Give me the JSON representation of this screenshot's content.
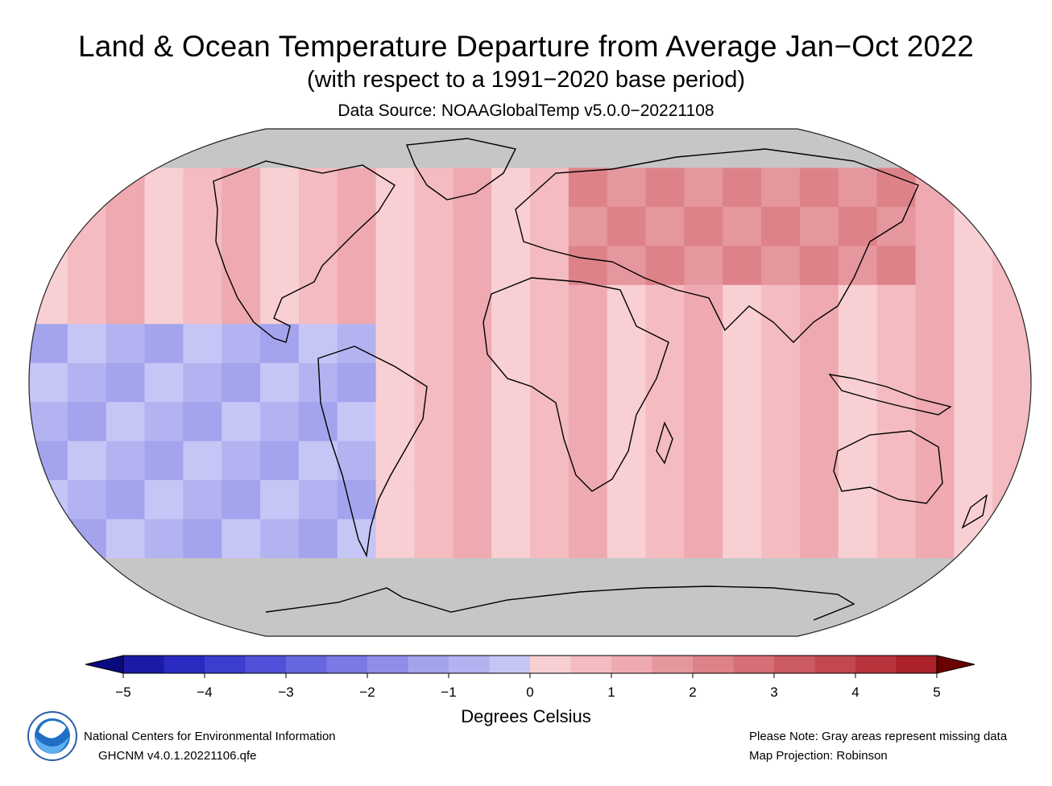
{
  "header": {
    "title": "Land & Ocean Temperature Departure from Average Jan−Oct 2022",
    "subtitle": "(with respect to a 1991−2020 base period)",
    "source": "Data Source: NOAAGlobalTemp v5.0.0−20221108"
  },
  "colorbar": {
    "tick_labels": [
      "−5",
      "−4",
      "−3",
      "−2",
      "−1",
      "0",
      "1",
      "2",
      "3",
      "4",
      "5"
    ],
    "units": "Degrees Celsius",
    "colors": [
      "#1a1aa6",
      "#2a2ac0",
      "#3c3ccf",
      "#5050d9",
      "#6666de",
      "#7a7ae4",
      "#8e8ee8",
      "#a3a3ee",
      "#b3b3f2",
      "#c6c6f6",
      "#f8cfd2",
      "#f4bcc0",
      "#eeaab0",
      "#e6969d",
      "#de8289",
      "#d56e76",
      "#cc5a62",
      "#c3474f",
      "#b8343c",
      "#ab2129"
    ],
    "under_color": "#0a0a80",
    "over_color": "#6b0000"
  },
  "map": {
    "projection": "Robinson",
    "missing_color": "#c6c6c6",
    "ocean_base_color": "#f4c3c6",
    "legend_note": "Gray areas represent missing data"
  },
  "footer": {
    "org": "National Centers for Environmental Information",
    "dataset": "GHCNM v4.0.1.20221106.qfe",
    "note": "Please Note: Gray areas represent missing data",
    "projection": "Map Projection: Robinson",
    "logo_text": "NOAA"
  }
}
